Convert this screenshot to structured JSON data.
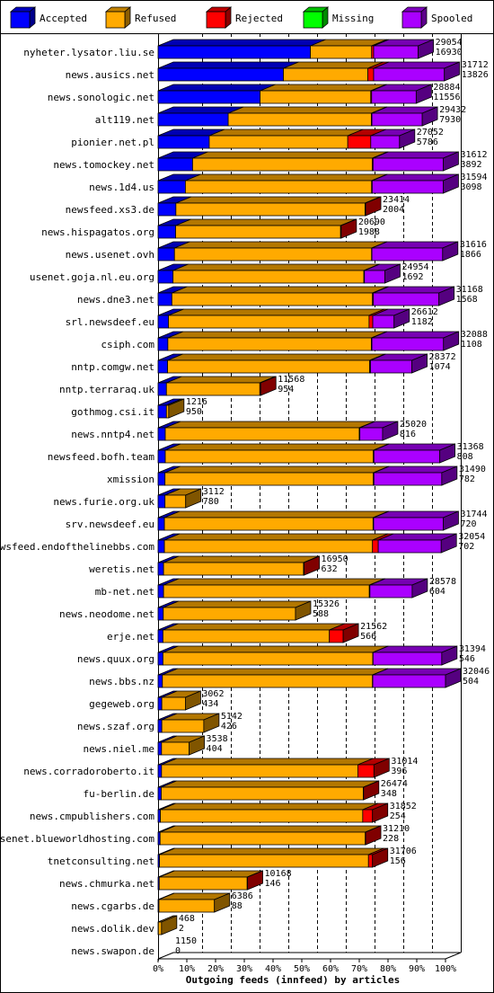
{
  "chart_data": {
    "type": "bar",
    "orientation": "horizontal",
    "stacked": true,
    "xlabel": "Outgoing feeds (innfeed) by articles",
    "xlim": [
      0,
      100
    ],
    "x_ticks": [
      "0%",
      "10%",
      "20%",
      "30%",
      "40%",
      "50%",
      "60%",
      "70%",
      "80%",
      "90%",
      "100%"
    ],
    "legend_position": "top",
    "series": [
      {
        "name": "Accepted",
        "color": "#0000ff"
      },
      {
        "name": "Refused",
        "color": "#ffaa00"
      },
      {
        "name": "Rejected",
        "color": "#ff0000"
      },
      {
        "name": "Missing",
        "color": "#00ff00"
      },
      {
        "name": "Spooled",
        "color": "#aa00ff"
      }
    ],
    "rows": [
      {
        "name": "nyheter.lysator.liu.se",
        "total": "29054",
        "accepted": "16930",
        "pct": [
          53.0,
          21.3,
          0.7,
          0,
          15.5
        ]
      },
      {
        "name": "news.ausics.net",
        "total": "31712",
        "accepted": "13826",
        "pct": [
          43.6,
          29.4,
          2.0,
          0,
          24.6
        ]
      },
      {
        "name": "news.sonologic.net",
        "total": "28884",
        "accepted": "11556",
        "pct": [
          35.5,
          38.5,
          0.3,
          0,
          15.5
        ]
      },
      {
        "name": "alt119.net",
        "total": "29432",
        "accepted": "7930",
        "pct": [
          24.4,
          49.8,
          0.2,
          0,
          17.5
        ]
      },
      {
        "name": "pionier.net.pl",
        "total": "27052",
        "accepted": "5786",
        "pct": [
          17.8,
          48.2,
          8.0,
          0,
          10.0
        ]
      },
      {
        "name": "news.tomockey.net",
        "total": "31612",
        "accepted": "3892",
        "pct": [
          12.0,
          62.5,
          0.3,
          0,
          24.4
        ]
      },
      {
        "name": "news.1d4.us",
        "total": "31594",
        "accepted": "3098",
        "pct": [
          9.5,
          64.8,
          0.2,
          0,
          24.7
        ]
      },
      {
        "name": "newsfeed.xs3.de",
        "total": "23414",
        "accepted": "2004",
        "pct": [
          6.2,
          65.8,
          0.2,
          0,
          0
        ]
      },
      {
        "name": "news.hispagatos.org",
        "total": "20690",
        "accepted": "1988",
        "pct": [
          6.1,
          57.4,
          0.2,
          0,
          0
        ]
      },
      {
        "name": "news.usenet.ovh",
        "total": "31616",
        "accepted": "1866",
        "pct": [
          5.7,
          68.6,
          0.1,
          0,
          24.6
        ]
      },
      {
        "name": "usenet.goja.nl.eu.org",
        "total": "24954",
        "accepted": "1692",
        "pct": [
          5.2,
          66.4,
          0.2,
          0,
          7.1
        ]
      },
      {
        "name": "news.dne3.net",
        "total": "31168",
        "accepted": "1568",
        "pct": [
          4.8,
          69.8,
          0.3,
          0,
          22.8
        ]
      },
      {
        "name": "srl.newsdeef.eu",
        "total": "26612",
        "accepted": "1182",
        "pct": [
          3.6,
          69.8,
          1.3,
          0,
          7.4
        ]
      },
      {
        "name": "csiph.com",
        "total": "32088",
        "accepted": "1108",
        "pct": [
          3.4,
          70.8,
          0.2,
          0,
          24.9
        ]
      },
      {
        "name": "nntp.comgw.net",
        "total": "28372",
        "accepted": "1074",
        "pct": [
          3.3,
          70.3,
          0.3,
          0,
          14.4
        ]
      },
      {
        "name": "nntp.terraraq.uk",
        "total": "11568",
        "accepted": "954",
        "pct": [
          2.9,
          32.5,
          0.3,
          0,
          0
        ]
      },
      {
        "name": "gothmog.csi.it",
        "total": "1216",
        "accepted": "950",
        "pct": [
          2.9,
          0.8,
          0,
          0,
          0
        ]
      },
      {
        "name": "news.nntp4.net",
        "total": "25020",
        "accepted": "816",
        "pct": [
          2.5,
          67.5,
          0.2,
          0,
          7.9
        ]
      },
      {
        "name": "newsfeed.bofh.team",
        "total": "31368",
        "accepted": "808",
        "pct": [
          2.5,
          72.4,
          0.2,
          0,
          22.9
        ]
      },
      {
        "name": "xmission",
        "total": "31490",
        "accepted": "782",
        "pct": [
          2.4,
          72.5,
          0.2,
          0,
          23.6
        ]
      },
      {
        "name": "news.furie.org.uk",
        "total": "3112",
        "accepted": "780",
        "pct": [
          2.4,
          7.2,
          0,
          0,
          0
        ]
      },
      {
        "name": "srv.newsdeef.eu",
        "total": "31744",
        "accepted": "720",
        "pct": [
          2.2,
          72.6,
          0.2,
          0,
          24.2
        ]
      },
      {
        "name": "newsfeed.endofthelinebbs.com",
        "total": "32054",
        "accepted": "702",
        "pct": [
          2.2,
          72.4,
          2.0,
          0,
          21.9
        ]
      },
      {
        "name": "weretis.net",
        "total": "16950",
        "accepted": "632",
        "pct": [
          1.9,
          48.7,
          0.2,
          0,
          0
        ]
      },
      {
        "name": "mb-net.net",
        "total": "28578",
        "accepted": "604",
        "pct": [
          1.9,
          71.6,
          0.2,
          0,
          14.7
        ]
      },
      {
        "name": "news.neodome.net",
        "total": "15326",
        "accepted": "588",
        "pct": [
          1.8,
          46.0,
          0,
          0,
          0
        ]
      },
      {
        "name": "erje.net",
        "total": "21562",
        "accepted": "566",
        "pct": [
          1.7,
          57.9,
          4.8,
          0,
          0
        ]
      },
      {
        "name": "news.quux.org",
        "total": "31394",
        "accepted": "546",
        "pct": [
          1.7,
          73.0,
          0.1,
          0,
          23.9
        ]
      },
      {
        "name": "news.bbs.nz",
        "total": "32046",
        "accepted": "504",
        "pct": [
          1.5,
          73.1,
          0.1,
          0,
          25.3
        ]
      },
      {
        "name": "gegeweb.org",
        "total": "3062",
        "accepted": "434",
        "pct": [
          1.3,
          8.2,
          0,
          0,
          0
        ]
      },
      {
        "name": "news.szaf.org",
        "total": "5142",
        "accepted": "426",
        "pct": [
          1.3,
          14.6,
          0,
          0,
          0
        ]
      },
      {
        "name": "news.niel.me",
        "total": "3538",
        "accepted": "404",
        "pct": [
          1.2,
          9.6,
          0,
          0,
          0
        ]
      },
      {
        "name": "news.corradoroberto.it",
        "total": "31014",
        "accepted": "396",
        "pct": [
          1.2,
          68.3,
          5.6,
          0,
          0
        ]
      },
      {
        "name": "fu-berlin.de",
        "total": "26474",
        "accepted": "348",
        "pct": [
          1.1,
          70.3,
          0.1,
          0,
          0
        ]
      },
      {
        "name": "news.cmpublishers.com",
        "total": "31852",
        "accepted": "254",
        "pct": [
          0.8,
          70.4,
          3.4,
          0,
          0
        ]
      },
      {
        "name": "usenet.blueworldhosting.com",
        "total": "31210",
        "accepted": "228",
        "pct": [
          0.7,
          71.4,
          0.1,
          0,
          0
        ]
      },
      {
        "name": "tnetconsulting.net",
        "total": "31706",
        "accepted": "156",
        "pct": [
          0.5,
          72.7,
          1.4,
          0,
          0
        ]
      },
      {
        "name": "news.chmurka.net",
        "total": "10168",
        "accepted": "146",
        "pct": [
          0.4,
          30.6,
          0.1,
          0,
          0
        ]
      },
      {
        "name": "news.cgarbs.de",
        "total": "6386",
        "accepted": "88",
        "pct": [
          0.3,
          19.3,
          0,
          0,
          0
        ]
      },
      {
        "name": "news.dolik.dev",
        "total": "468",
        "accepted": "2",
        "pct": [
          0.1,
          1.1,
          0,
          0,
          0
        ]
      },
      {
        "name": "news.swapon.de",
        "total": "1150",
        "accepted": "0",
        "pct": [
          0,
          0,
          0,
          0,
          0
        ]
      }
    ]
  }
}
